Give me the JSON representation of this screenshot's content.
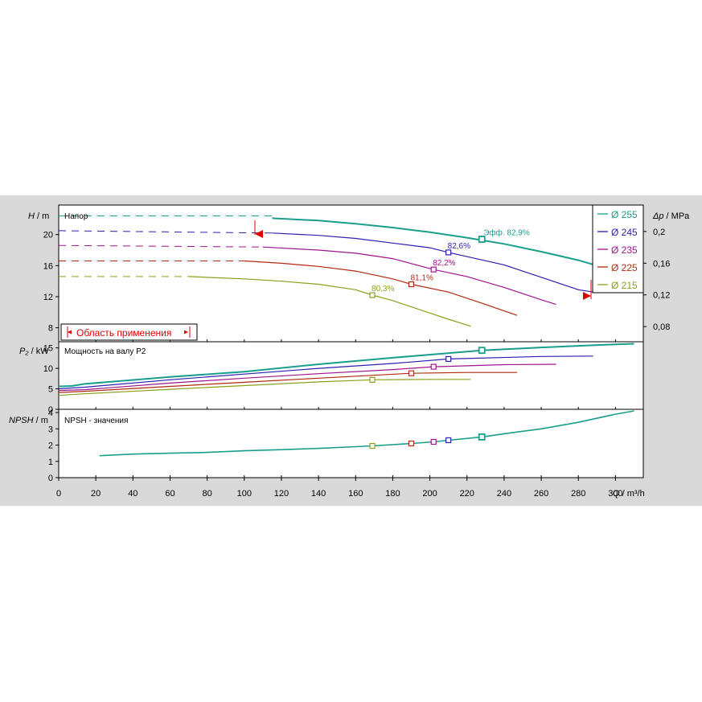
{
  "chart_data": {
    "type": "line",
    "x": {
      "label_var": "Q",
      "label_unit": " / m³/h",
      "range": [
        0,
        315
      ],
      "ticks": [
        "0",
        "20",
        "40",
        "60",
        "80",
        "100",
        "120",
        "140",
        "160",
        "180",
        "200",
        "220",
        "240",
        "260",
        "280",
        "300"
      ]
    },
    "legend": [
      "Ø 255",
      "Ø 245",
      "Ø 235",
      "Ø 225",
      "Ø 215"
    ],
    "colors": [
      "#1a9e8c",
      "#2b1fb0",
      "#a0148c",
      "#b02a10",
      "#8aa01a"
    ],
    "panels": {
      "head": {
        "title": "Напор",
        "y_var": "H",
        "y_unit": " / m",
        "ylim": [
          6.2,
          23.8
        ],
        "yticks": [
          "8",
          "12",
          "16",
          "20"
        ],
        "right_var": "Δp",
        "right_unit": " / MPa",
        "rticks": [
          "0,08",
          "0,12",
          "0,16",
          "0,2"
        ],
        "application_range": "Область применения",
        "series": [
          {
            "name": "Ø 255",
            "dashed": [
              [
                0,
                22.4
              ],
              [
                115,
                22.4
              ]
            ],
            "solid": [
              [
                115,
                22.1
              ],
              [
                140,
                21.8
              ],
              [
                160,
                21.4
              ],
              [
                180,
                20.9
              ],
              [
                200,
                20.3
              ],
              [
                220,
                19.6
              ],
              [
                240,
                18.8
              ],
              [
                260,
                17.8
              ],
              [
                280,
                16.7
              ],
              [
                300,
                15.3
              ],
              [
                310,
                14.4
              ]
            ],
            "bep": [
              228,
              19.4
            ],
            "bep_label": "Эфф.  82,9%"
          },
          {
            "name": "Ø 245",
            "dashed": [
              [
                0,
                20.5
              ],
              [
                115,
                20.2
              ]
            ],
            "solid": [
              [
                115,
                20.2
              ],
              [
                140,
                19.9
              ],
              [
                160,
                19.5
              ],
              [
                180,
                18.9
              ],
              [
                200,
                18.3
              ],
              [
                210,
                17.7
              ],
              [
                240,
                16.1
              ],
              [
                260,
                14.5
              ],
              [
                280,
                12.9
              ],
              [
                288,
                12.6
              ]
            ],
            "bep": [
              210,
              17.7
            ],
            "bep_label": "82,6%"
          },
          {
            "name": "Ø 235",
            "dashed": [
              [
                0,
                18.6
              ],
              [
                110,
                18.4
              ]
            ],
            "solid": [
              [
                110,
                18.4
              ],
              [
                140,
                18.0
              ],
              [
                160,
                17.6
              ],
              [
                180,
                16.9
              ],
              [
                202,
                15.5
              ],
              [
                220,
                14.6
              ],
              [
                240,
                13.2
              ],
              [
                260,
                11.6
              ],
              [
                268,
                11.0
              ]
            ],
            "bep": [
              202,
              15.5
            ],
            "bep_label": "82,2%"
          },
          {
            "name": "Ø 225",
            "dashed": [
              [
                0,
                16.6
              ],
              [
                100,
                16.6
              ]
            ],
            "solid": [
              [
                100,
                16.6
              ],
              [
                120,
                16.3
              ],
              [
                140,
                15.9
              ],
              [
                160,
                15.3
              ],
              [
                180,
                14.3
              ],
              [
                190,
                13.6
              ],
              [
                210,
                12.6
              ],
              [
                230,
                11.0
              ],
              [
                247,
                9.6
              ]
            ],
            "bep": [
              190,
              13.6
            ],
            "bep_label": "81,1%"
          },
          {
            "name": "Ø 215",
            "dashed": [
              [
                0,
                14.6
              ],
              [
                70,
                14.6
              ]
            ],
            "solid": [
              [
                70,
                14.6
              ],
              [
                100,
                14.3
              ],
              [
                120,
                14.0
              ],
              [
                140,
                13.6
              ],
              [
                160,
                12.9
              ],
              [
                169,
                12.2
              ],
              [
                180,
                11.5
              ],
              [
                200,
                9.9
              ],
              [
                210,
                9.1
              ],
              [
                222,
                8.2
              ]
            ],
            "bep": [
              169,
              12.2
            ],
            "bep_label": "80,3%"
          }
        ]
      },
      "power": {
        "title": "Мощность на валу P2",
        "y_var": "P₂",
        "y_unit": " / kW",
        "ylim": [
          0,
          16.5
        ],
        "yticks": [
          "0",
          "5",
          "10",
          "15"
        ],
        "series": [
          {
            "name": "Ø 255",
            "line": [
              [
                0,
                5.6
              ],
              [
                7,
                5.7
              ],
              [
                14,
                6.2
              ],
              [
                60,
                7.9
              ],
              [
                100,
                9.2
              ],
              [
                140,
                11.0
              ],
              [
                180,
                12.6
              ],
              [
                228,
                14.4
              ],
              [
                260,
                15.1
              ],
              [
                290,
                15.7
              ],
              [
                310,
                16.0
              ]
            ],
            "bep": [
              228,
              14.4
            ]
          },
          {
            "name": "Ø 245",
            "line": [
              [
                0,
                5.0
              ],
              [
                14,
                5.4
              ],
              [
                60,
                7.2
              ],
              [
                100,
                8.6
              ],
              [
                140,
                10.0
              ],
              [
                180,
                11.2
              ],
              [
                210,
                12.3
              ],
              [
                260,
                12.9
              ],
              [
                288,
                13.0
              ]
            ],
            "bep": [
              210,
              12.3
            ]
          },
          {
            "name": "Ø 235",
            "line": [
              [
                0,
                4.6
              ],
              [
                14,
                4.8
              ],
              [
                60,
                6.4
              ],
              [
                100,
                7.6
              ],
              [
                140,
                8.7
              ],
              [
                180,
                9.7
              ],
              [
                202,
                10.4
              ],
              [
                240,
                10.9
              ],
              [
                268,
                11.0
              ]
            ],
            "bep": [
              202,
              10.4
            ]
          },
          {
            "name": "Ø 225",
            "line": [
              [
                0,
                4.1
              ],
              [
                14,
                4.4
              ],
              [
                60,
                5.6
              ],
              [
                100,
                6.6
              ],
              [
                140,
                7.6
              ],
              [
                190,
                8.8
              ],
              [
                220,
                9.0
              ],
              [
                247,
                9.0
              ]
            ],
            "bep": [
              190,
              8.8
            ]
          },
          {
            "name": "Ø 215",
            "line": [
              [
                0,
                3.4
              ],
              [
                14,
                3.8
              ],
              [
                60,
                4.9
              ],
              [
                100,
                5.8
              ],
              [
                140,
                6.7
              ],
              [
                169,
                7.2
              ],
              [
                200,
                7.3
              ],
              [
                222,
                7.3
              ]
            ],
            "bep": [
              169,
              7.2
            ]
          }
        ]
      },
      "npsh": {
        "title": "NPSH - значения",
        "y_var": "NPSH",
        "y_unit": " / m",
        "ylim": [
          0,
          4.2
        ],
        "yticks": [
          "0",
          "1",
          "2",
          "3",
          "4"
        ],
        "curve": [
          [
            22,
            1.35
          ],
          [
            40,
            1.45
          ],
          [
            60,
            1.5
          ],
          [
            80,
            1.55
          ],
          [
            100,
            1.65
          ],
          [
            120,
            1.72
          ],
          [
            140,
            1.8
          ],
          [
            160,
            1.9
          ],
          [
            169,
            1.95
          ],
          [
            190,
            2.1
          ],
          [
            202,
            2.2
          ],
          [
            210,
            2.3
          ],
          [
            228,
            2.5
          ],
          [
            240,
            2.7
          ],
          [
            260,
            3.0
          ],
          [
            280,
            3.4
          ],
          [
            300,
            3.9
          ],
          [
            310,
            4.1
          ]
        ],
        "beps": [
          {
            "name": "Ø 215",
            "x": 169,
            "y": 1.95
          },
          {
            "name": "Ø 225",
            "x": 190,
            "y": 2.1
          },
          {
            "name": "Ø 235",
            "x": 202,
            "y": 2.2
          },
          {
            "name": "Ø 245",
            "x": 210,
            "y": 2.3
          },
          {
            "name": "Ø 255",
            "x": 228,
            "y": 2.5
          }
        ]
      }
    }
  }
}
